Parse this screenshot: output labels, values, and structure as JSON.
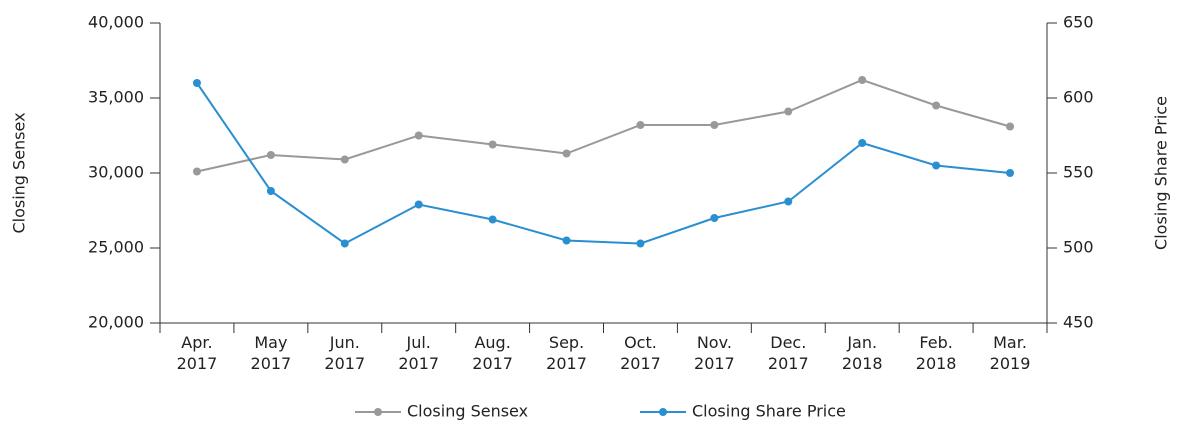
{
  "chart_data": {
    "type": "line",
    "categories": [
      "Apr. 2017",
      "May 2017",
      "Jun. 2017",
      "Jul. 2017",
      "Aug. 2017",
      "Sep. 2017",
      "Oct. 2017",
      "Nov. 2017",
      "Dec. 2017",
      "Jan. 2018",
      "Feb. 2018",
      "Mar. 2019"
    ],
    "series": [
      {
        "name": "Closing Sensex",
        "color": "#999999",
        "values": [
          30100,
          31200,
          30900,
          32500,
          31900,
          31300,
          33200,
          33200,
          34100,
          36200,
          34500,
          33100
        ]
      },
      {
        "name": "Closing Share Price",
        "color": "#2a8fd0",
        "axis": "y2",
        "values": [
          610,
          538,
          503,
          529,
          519,
          505,
          503,
          520,
          531,
          570,
          555,
          550
        ]
      }
    ],
    "ylabel": "Closing Sensex",
    "y2label": "Closing Share Price",
    "ylim": [
      20000,
      40000
    ],
    "yticks": [
      {
        "value": 20000,
        "label": "20,000"
      },
      {
        "value": 25000,
        "label": "25,000"
      },
      {
        "value": 30000,
        "label": "30,000"
      },
      {
        "value": 35000,
        "label": "35,000"
      },
      {
        "value": 40000,
        "label": "40,000"
      }
    ],
    "y2lim": [
      450,
      650
    ],
    "y2ticks": [
      450,
      500,
      550,
      600,
      650
    ],
    "legend": "bottom"
  }
}
